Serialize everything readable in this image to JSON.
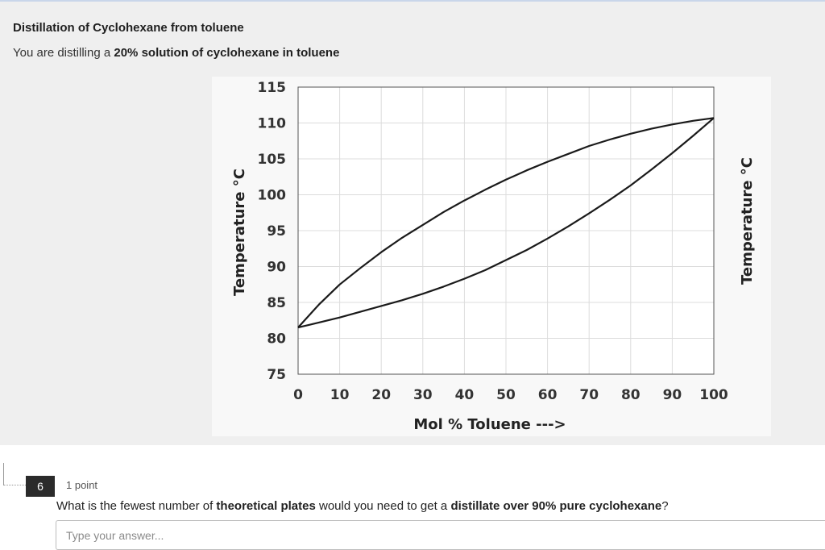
{
  "section": {
    "title": "Distillation of Cyclohexane from toluene",
    "desc_prefix": "You are distilling a ",
    "desc_bold": "20% solution of cyclohexane in toluene"
  },
  "chart_data": {
    "type": "line",
    "title": "",
    "xlabel": "Mol % Toluene --->",
    "ylabel": "Temperature °C",
    "ylabel_right": "Temperature °C",
    "xlim": [
      0,
      100
    ],
    "ylim": [
      75,
      115
    ],
    "xticks": [
      "0",
      "10",
      "20",
      "30",
      "40",
      "50",
      "60",
      "70",
      "80",
      "90",
      "100"
    ],
    "yticks": [
      "75",
      "80",
      "85",
      "90",
      "95",
      "100",
      "105",
      "110",
      "115"
    ],
    "grid": true,
    "series": [
      {
        "x": [
          0,
          5,
          10,
          15,
          20,
          25,
          30,
          35,
          40,
          45,
          50,
          55,
          60,
          65,
          70,
          75,
          80,
          85,
          90,
          95,
          100
        ],
        "y": [
          81.5,
          84.7,
          87.5,
          89.8,
          92.0,
          94.0,
          95.8,
          97.6,
          99.2,
          100.7,
          102.1,
          103.4,
          104.6,
          105.7,
          106.8,
          107.7,
          108.5,
          109.2,
          109.8,
          110.3,
          110.7
        ]
      },
      {
        "x": [
          0,
          5,
          10,
          15,
          20,
          25,
          30,
          35,
          40,
          45,
          50,
          55,
          60,
          65,
          70,
          75,
          80,
          85,
          90,
          95,
          100
        ],
        "y": [
          81.5,
          82.2,
          82.9,
          83.7,
          84.5,
          85.3,
          86.2,
          87.2,
          88.3,
          89.5,
          90.9,
          92.3,
          93.9,
          95.6,
          97.4,
          99.3,
          101.3,
          103.5,
          105.8,
          108.2,
          110.7
        ]
      }
    ]
  },
  "question": {
    "number": "6",
    "points": "1 point",
    "text_1": "What is the fewest number of ",
    "bold_1": "theoretical plates",
    "text_2": " would you need to get a ",
    "bold_2": "distillate over 90% pure cyclohexane",
    "text_3": "?",
    "placeholder": "Type your answer..."
  }
}
